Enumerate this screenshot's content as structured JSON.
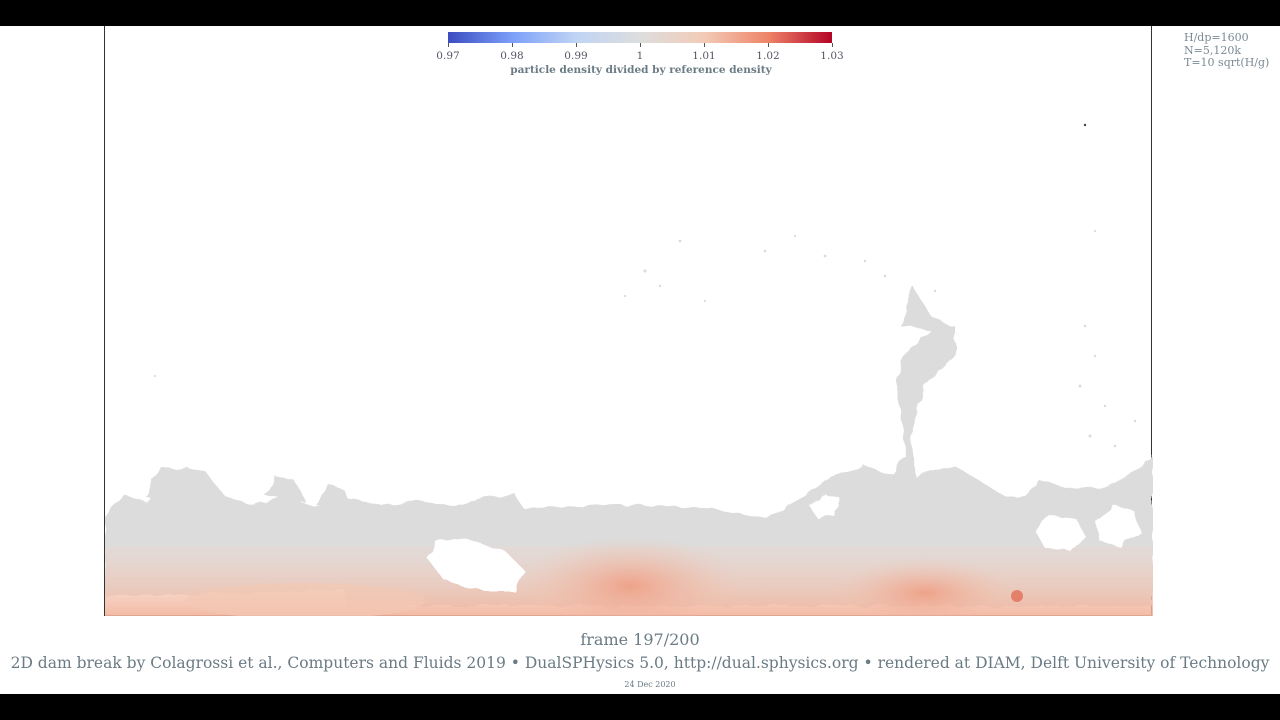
{
  "colorbar": {
    "ticks": [
      "0.97",
      "0.98",
      "0.99",
      "1",
      "1.01",
      "1.02",
      "1.03"
    ],
    "label": "particle density divided by reference density",
    "colors": [
      "#3b4cc0",
      "#7b9ff9",
      "#c0d4f5",
      "#dddddd",
      "#f2cbb7",
      "#ee8468",
      "#b40426"
    ]
  },
  "params": {
    "line1": "H/dp=1600",
    "line2": "N=5,120k",
    "line3": "T=10 sqrt(H/g)"
  },
  "frame_label": "frame 197/200",
  "credits": "2D dam break by Colagrossi et al., Computers and Fluids 2019 • DualSPHysics 5.0, http://dual.sphysics.org • rendered at DIAM, Delft University of Technology",
  "date": "24 Dec 2020"
}
